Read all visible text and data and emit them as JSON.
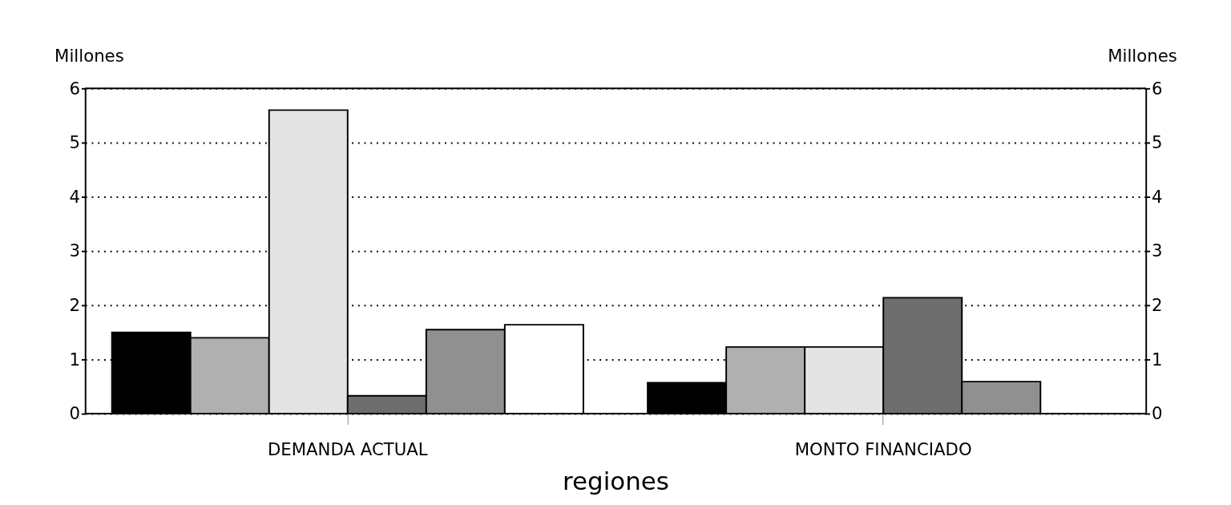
{
  "chart_data": {
    "type": "bar",
    "xlabel": "regiones",
    "ylabel": "Millones",
    "y2label": "Millones",
    "categories": [
      "DEMANDA ACTUAL",
      "MONTO FINANCIADO"
    ],
    "series": [
      {
        "color": "#000000",
        "values": [
          1.5,
          0.57
        ]
      },
      {
        "color": "#b0b0b0",
        "values": [
          1.4,
          1.23
        ]
      },
      {
        "color": "#e4e4e4",
        "values": [
          5.6,
          1.23
        ]
      },
      {
        "color": "#6e6e6e",
        "values": [
          0.33,
          2.14
        ]
      },
      {
        "color": "#909090",
        "values": [
          1.55,
          0.59
        ]
      },
      {
        "color": "#ffffff",
        "values": [
          1.64,
          null
        ]
      }
    ],
    "ylim": [
      0,
      6
    ],
    "yticks": [
      0,
      1,
      2,
      3,
      4,
      5,
      6
    ],
    "y2lim": [
      0,
      6
    ],
    "y2ticks": [
      0,
      1,
      2,
      3,
      4,
      5,
      6
    ],
    "grid": "y",
    "legend": false
  }
}
